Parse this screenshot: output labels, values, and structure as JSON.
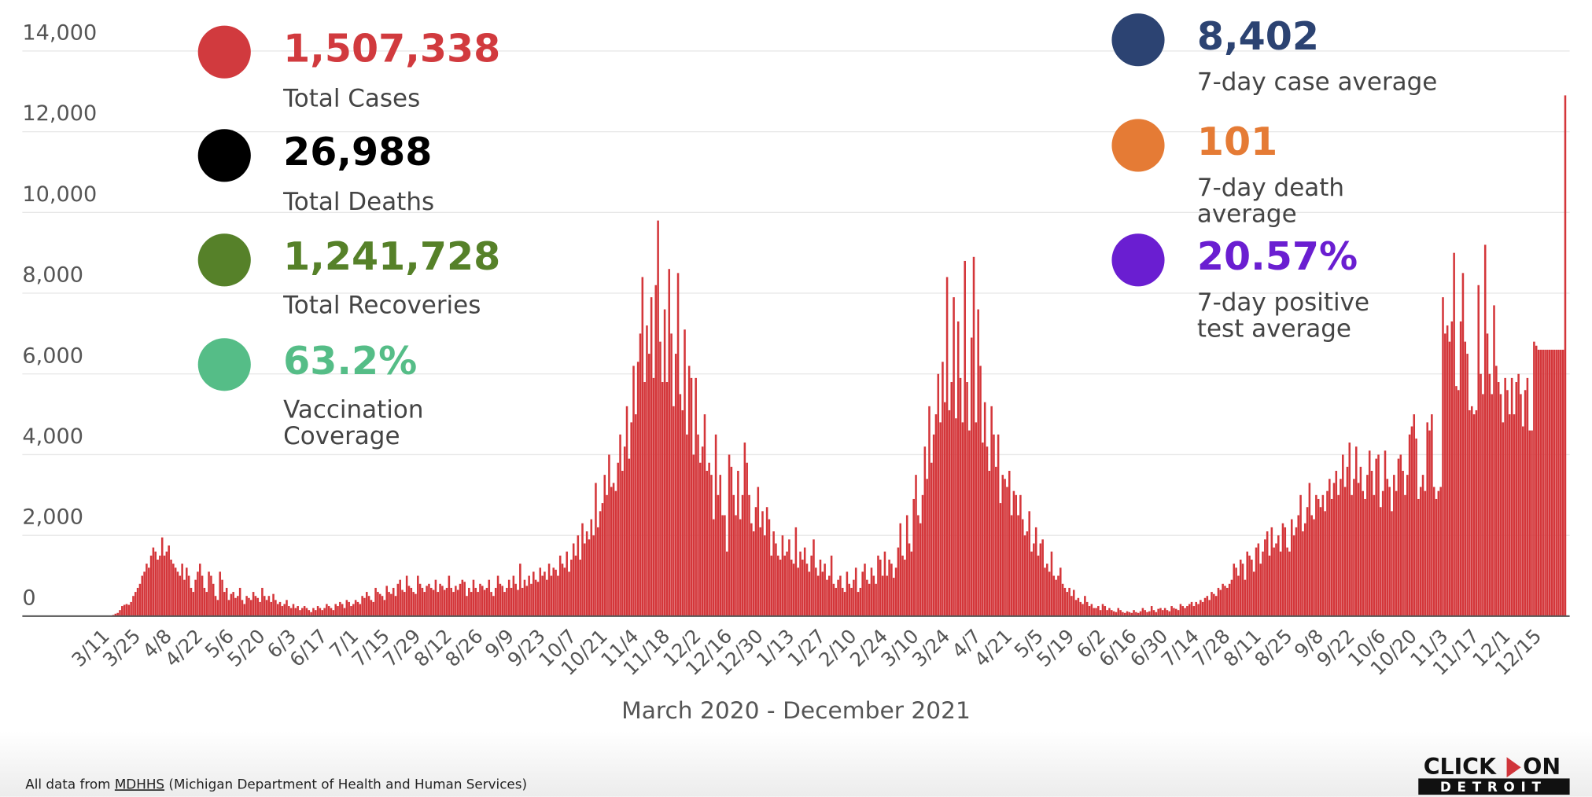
{
  "chart_data": {
    "type": "bar",
    "xlabel": "March 2020 - December 2021",
    "color": "#d4363a",
    "ylim": [
      0,
      14000
    ],
    "yticks": [
      0,
      {
        "value": 2000,
        "label": "2,000"
      },
      {
        "value": 4000,
        "label": "4,000"
      },
      {
        "value": 6000,
        "label": "6,000"
      },
      {
        "value": 8000,
        "label": "8,000"
      },
      {
        "value": 10000,
        "label": "10,000"
      },
      {
        "value": 12000,
        "label": "12,000"
      },
      {
        "value": 14000,
        "label": "14,000"
      }
    ],
    "grid": true,
    "categories": [
      "3/11",
      null,
      null,
      null,
      null,
      null,
      null,
      null,
      null,
      null,
      null,
      null,
      null,
      null,
      "3/25",
      null,
      null,
      null,
      null,
      null,
      null,
      null,
      null,
      null,
      null,
      null,
      null,
      null,
      "4/8",
      null,
      null,
      null,
      null,
      null,
      null,
      null,
      null,
      null,
      null,
      null,
      null,
      null,
      "4/22",
      null,
      null,
      null,
      null,
      null,
      null,
      null,
      null,
      null,
      null,
      null,
      null,
      null,
      "5/6",
      null,
      null,
      null,
      null,
      null,
      null,
      null,
      null,
      null,
      null,
      null,
      null,
      null,
      "5/20",
      null,
      null,
      null,
      null,
      null,
      null,
      null,
      null,
      null,
      null,
      null,
      null,
      null,
      "6/3",
      null,
      null,
      null,
      null,
      null,
      null,
      null,
      null,
      null,
      null,
      null,
      null,
      null,
      "6/17",
      null,
      null,
      null,
      null,
      null,
      null,
      null,
      null,
      null,
      null,
      null,
      null,
      null,
      "7/1",
      null,
      null,
      null,
      null,
      null,
      null,
      null,
      null,
      null,
      null,
      null,
      null,
      null,
      "7/15",
      null,
      null,
      null,
      null,
      null,
      null,
      null,
      null,
      null,
      null,
      null,
      null,
      null,
      "7/29",
      null,
      null,
      null,
      null,
      null,
      null,
      null,
      null,
      null,
      null,
      null,
      null,
      null,
      "8/12",
      null,
      null,
      null,
      null,
      null,
      null,
      null,
      null,
      null,
      null,
      null,
      null,
      null,
      "8/26",
      null,
      null,
      null,
      null,
      null,
      null,
      null,
      null,
      null,
      null,
      null,
      null,
      null,
      "9/9",
      null,
      null,
      null,
      null,
      null,
      null,
      null,
      null,
      null,
      null,
      null,
      null,
      null,
      "9/23",
      null,
      null,
      null,
      null,
      null,
      null,
      null,
      null,
      null,
      null,
      null,
      null,
      null,
      "10/7",
      null,
      null,
      null,
      null,
      null,
      null,
      null,
      null,
      null,
      null,
      null,
      null,
      null,
      "10/21",
      null,
      null,
      null,
      null,
      null,
      null,
      null,
      null,
      null,
      null,
      null,
      null,
      null,
      "11/4",
      null,
      null,
      null,
      null,
      null,
      null,
      null,
      null,
      null,
      null,
      null,
      null,
      null,
      "11/18",
      null,
      null,
      null,
      null,
      null,
      null,
      null,
      null,
      null,
      null,
      null,
      null,
      null,
      "12/2",
      null,
      null,
      null,
      null,
      null,
      null,
      null,
      null,
      null,
      null,
      null,
      null,
      null,
      "12/16",
      null,
      null,
      null,
      null,
      null,
      null,
      null,
      null,
      null,
      null,
      null,
      null,
      null,
      "12/30",
      null,
      null,
      null,
      null,
      null,
      null,
      null,
      null,
      null,
      null,
      null,
      null,
      null,
      "1/13",
      null,
      null,
      null,
      null,
      null,
      null,
      null,
      null,
      null,
      null,
      null,
      null,
      null,
      "1/27",
      null,
      null,
      null,
      null,
      null,
      null,
      null,
      null,
      null,
      null,
      null,
      null,
      null,
      "2/10",
      null,
      null,
      null,
      null,
      null,
      null,
      null,
      null,
      null,
      null,
      null,
      null,
      null,
      "2/24",
      null,
      null,
      null,
      null,
      null,
      null,
      null,
      null,
      null,
      null,
      null,
      null,
      null,
      "3/10",
      null,
      null,
      null,
      null,
      null,
      null,
      null,
      null,
      null,
      null,
      null,
      null,
      null,
      "3/24",
      null,
      null,
      null,
      null,
      null,
      null,
      null,
      null,
      null,
      null,
      null,
      null,
      null,
      "4/7",
      null,
      null,
      null,
      null,
      null,
      null,
      null,
      null,
      null,
      null,
      null,
      null,
      null,
      "4/21",
      null,
      null,
      null,
      null,
      null,
      null,
      null,
      null,
      null,
      null,
      null,
      null,
      null,
      "5/5",
      null,
      null,
      null,
      null,
      null,
      null,
      null,
      null,
      null,
      null,
      null,
      null,
      null,
      "5/19",
      null,
      null,
      null,
      null,
      null,
      null,
      null,
      null,
      null,
      null,
      null,
      null,
      null,
      "6/2",
      null,
      null,
      null,
      null,
      null,
      null,
      null,
      null,
      null,
      null,
      null,
      null,
      null,
      "6/16",
      null,
      null,
      null,
      null,
      null,
      null,
      null,
      null,
      null,
      null,
      null,
      null,
      null,
      "6/30",
      null,
      null,
      null,
      null,
      null,
      null,
      null,
      null,
      null,
      null,
      null,
      null,
      null,
      "7/14",
      null,
      null,
      null,
      null,
      null,
      null,
      null,
      null,
      null,
      null,
      null,
      null,
      null,
      "7/28",
      null,
      null,
      null,
      null,
      null,
      null,
      null,
      null,
      null,
      null,
      null,
      null,
      null,
      "8/11",
      null,
      null,
      null,
      null,
      null,
      null,
      null,
      null,
      null,
      null,
      null,
      null,
      null,
      "8/25",
      null,
      null,
      null,
      null,
      null,
      null,
      null,
      null,
      null,
      null,
      null,
      null,
      null,
      "9/8",
      null,
      null,
      null,
      null,
      null,
      null,
      null,
      null,
      null,
      null,
      null,
      null,
      null,
      "9/22",
      null,
      null,
      null,
      null,
      null,
      null,
      null,
      null,
      null,
      null,
      null,
      null,
      null,
      "10/6",
      null,
      null,
      null,
      null,
      null,
      null,
      null,
      null,
      null,
      null,
      null,
      null,
      null,
      "10/20",
      null,
      null,
      null,
      null,
      null,
      null,
      null,
      null,
      null,
      null,
      null,
      null,
      null,
      "11/3",
      null,
      null,
      null,
      null,
      null,
      null,
      null,
      null,
      null,
      null,
      null,
      null,
      null,
      "11/17",
      null,
      null,
      null,
      null,
      null,
      null,
      null,
      null,
      null,
      null,
      null,
      null,
      null,
      "12/1",
      null,
      null,
      null,
      null,
      null,
      null,
      null,
      null,
      null,
      null,
      null,
      null,
      null,
      "12/15",
      null,
      null,
      null,
      null,
      null,
      null,
      null,
      null,
      null,
      null,
      null,
      null
    ],
    "values": [
      0,
      2,
      10,
      30,
      60,
      80,
      150,
      250,
      280,
      300,
      280,
      350,
      500,
      600,
      700,
      800,
      1000,
      1100,
      1300,
      1200,
      1500,
      1700,
      1600,
      1400,
      1500,
      1950,
      1500,
      1600,
      1750,
      1400,
      1300,
      1200,
      1100,
      1000,
      1300,
      900,
      1200,
      1000,
      700,
      600,
      900,
      1100,
      1300,
      1000,
      700,
      600,
      1100,
      1000,
      800,
      500,
      400,
      1100,
      900,
      600,
      700,
      400,
      550,
      600,
      450,
      500,
      700,
      400,
      300,
      500,
      450,
      400,
      600,
      500,
      450,
      350,
      700,
      500,
      400,
      500,
      350,
      550,
      400,
      300,
      350,
      250,
      300,
      400,
      250,
      200,
      300,
      200,
      250,
      150,
      200,
      250,
      200,
      150,
      100,
      200,
      150,
      250,
      200,
      150,
      200,
      300,
      250,
      200,
      150,
      300,
      250,
      350,
      300,
      200,
      400,
      350,
      250,
      300,
      400,
      350,
      300,
      500,
      450,
      600,
      500,
      400,
      350,
      700,
      600,
      550,
      500,
      400,
      750,
      600,
      550,
      700,
      500,
      800,
      900,
      650,
      600,
      1000,
      750,
      700,
      600,
      550,
      1000,
      800,
      700,
      600,
      750,
      800,
      700,
      650,
      900,
      600,
      800,
      750,
      650,
      700,
      1000,
      700,
      600,
      750,
      650,
      800,
      900,
      850,
      500,
      700,
      600,
      900,
      700,
      600,
      800,
      750,
      650,
      700,
      900,
      600,
      500,
      700,
      1000,
      800,
      750,
      600,
      700,
      900,
      700,
      1000,
      800,
      650,
      1300,
      700,
      900,
      750,
      1000,
      800,
      1100,
      900,
      850,
      1200,
      1000,
      1100,
      900,
      1300,
      1000,
      1200,
      1150,
      1000,
      1500,
      1300,
      1200,
      1600,
      1100,
      1400,
      1800,
      1500,
      2000,
      1400,
      2300,
      1800,
      2100,
      1900,
      2400,
      2000,
      3300,
      2200,
      2600,
      2800,
      3500,
      3000,
      4000,
      3200,
      3300,
      3100,
      3800,
      4500,
      3600,
      4200,
      5200,
      3900,
      4800,
      6200,
      5000,
      6300,
      7000,
      8400,
      5800,
      7200,
      6500,
      7900,
      5900,
      8200,
      9800,
      6800,
      5800,
      7600,
      5800,
      8600,
      7000,
      5200,
      6500,
      8500,
      5500,
      5100,
      7100,
      4500,
      6200,
      5900,
      4000,
      5900,
      4500,
      3800,
      4200,
      5000,
      3600,
      3800,
      3500,
      2400,
      4500,
      3000,
      3500,
      2500,
      2500,
      1600,
      4000,
      3700,
      3000,
      2500,
      3600,
      2400,
      3000,
      4300,
      3800,
      3000,
      2300,
      2100,
      2700,
      3200,
      2200,
      2600,
      2000,
      2700,
      2400,
      1500,
      2100,
      1800,
      1500,
      1400,
      2000,
      1500,
      1600,
      1900,
      1400,
      1300,
      2200,
      1200,
      1600,
      1400,
      1700,
      1300,
      1100,
      1500,
      1900,
      1200,
      1000,
      1400,
      1100,
      1300,
      900,
      1000,
      1500,
      800,
      700,
      900,
      1000,
      700,
      600,
      1100,
      800,
      700,
      900,
      1200,
      600,
      700,
      1100,
      1300,
      900,
      800,
      1200,
      1000,
      800,
      1500,
      1400,
      1000,
      1600,
      1000,
      1400,
      1300,
      950,
      1200,
      1700,
      2300,
      1500,
      1400,
      2500,
      1800,
      1600,
      2900,
      3500,
      2500,
      2300,
      3000,
      4200,
      3400,
      5200,
      3800,
      4500,
      5000,
      6000,
      4800,
      6300,
      5300,
      8400,
      5100,
      5800,
      7900,
      4900,
      7300,
      5900,
      4800,
      8800,
      5800,
      4600,
      6900,
      8900,
      4800,
      7600,
      6200,
      4300,
      5300,
      4200,
      3600,
      5200,
      4500,
      3700,
      4500,
      2800,
      3500,
      3400,
      3200,
      3600,
      2500,
      3100,
      3000,
      2500,
      3000,
      2400,
      2000,
      2100,
      2600,
      1600,
      1800,
      2200,
      1500,
      1800,
      1900,
      1200,
      1300,
      1100,
      1600,
      1000,
      900,
      1000,
      1200,
      800,
      700,
      600,
      700,
      500,
      650,
      400,
      450,
      350,
      300,
      500,
      350,
      250,
      300,
      200,
      200,
      250,
      150,
      300,
      250,
      150,
      200,
      150,
      120,
      100,
      200,
      150,
      100,
      80,
      120,
      100,
      80,
      150,
      100,
      80,
      120,
      200,
      150,
      100,
      120,
      250,
      150,
      100,
      180,
      200,
      150,
      200,
      150,
      120,
      250,
      200,
      180,
      150,
      300,
      250,
      200,
      250,
      300,
      350,
      250,
      350,
      300,
      400,
      350,
      450,
      500,
      400,
      600,
      550,
      500,
      700,
      650,
      800,
      750,
      700,
      800,
      900,
      1300,
      1200,
      1000,
      1400,
      1300,
      900,
      1600,
      1500,
      1400,
      1100,
      1700,
      1800,
      1300,
      1600,
      1900,
      2100,
      1500,
      2200,
      1700,
      1800,
      2000,
      1600,
      2300,
      2200,
      1700,
      1600,
      2400,
      2000,
      2200,
      2500,
      3000,
      2100,
      2300,
      2700,
      3300,
      2500,
      2400,
      3000,
      2900,
      2700,
      3000,
      2600,
      3100,
      3400,
      2900,
      3300,
      3600,
      3000,
      3400,
      4000,
      3200,
      3700,
      4300,
      3000,
      3400,
      4200,
      3300,
      3700,
      3100,
      2900,
      3500,
      4100,
      3600,
      3000,
      3900,
      4000,
      2700,
      3100,
      4100,
      3400,
      3200,
      2600,
      3500,
      3100,
      3900,
      4000,
      3600,
      3000,
      3500,
      4500,
      4700,
      5000,
      4400,
      2900,
      3200,
      3500,
      3100,
      4800,
      4600,
      5000,
      3200,
      2900,
      3100,
      3200,
      7900,
      7000,
      7200,
      6800,
      7300,
      9000,
      5700,
      5600,
      7300,
      8500,
      6800,
      6500,
      5100,
      5200,
      5000,
      5100,
      8200,
      6000,
      5500,
      9200,
      7000,
      6000,
      5500,
      7700,
      6200,
      5800,
      5500,
      4800,
      5900,
      5600,
      5000,
      5900,
      5000,
      5800,
      6000,
      5500,
      4700,
      5600,
      5900,
      4600,
      4600,
      6800,
      6700,
      6600,
      6600,
      6600,
      6600,
      6600,
      6600,
      6600,
      6600,
      6600,
      6600,
      6600,
      6600,
      12900
    ]
  },
  "stats": [
    {
      "value": "1,507,338",
      "label": [
        "Total Cases"
      ],
      "color": "#d13a3e"
    },
    {
      "value": "26,988",
      "label": [
        "Total Deaths"
      ],
      "color": "#000000"
    },
    {
      "value": "1,241,728",
      "label": [
        "Total Recoveries"
      ],
      "color": "#568129"
    },
    {
      "value": "63.2%",
      "label": [
        "Vaccination",
        "Coverage"
      ],
      "color": "#55bd87"
    },
    {
      "value": "8,402",
      "label": [
        "7-day case average"
      ],
      "color": "#2c4372"
    },
    {
      "value": "101",
      "label": [
        "7-day death",
        "average"
      ],
      "color": "#e57b35"
    },
    {
      "value": "20.57%",
      "label": [
        "7-day positive",
        "test average"
      ],
      "color": "#6a1ed1"
    }
  ],
  "footer": {
    "prefix": "All data from",
    "link": "MDHHS",
    "suffix": "(Michigan Department of Health and Human Services)"
  },
  "logo": {
    "top_left": "CLICK",
    "top_right": "ON",
    "bottom": "DETROIT"
  }
}
